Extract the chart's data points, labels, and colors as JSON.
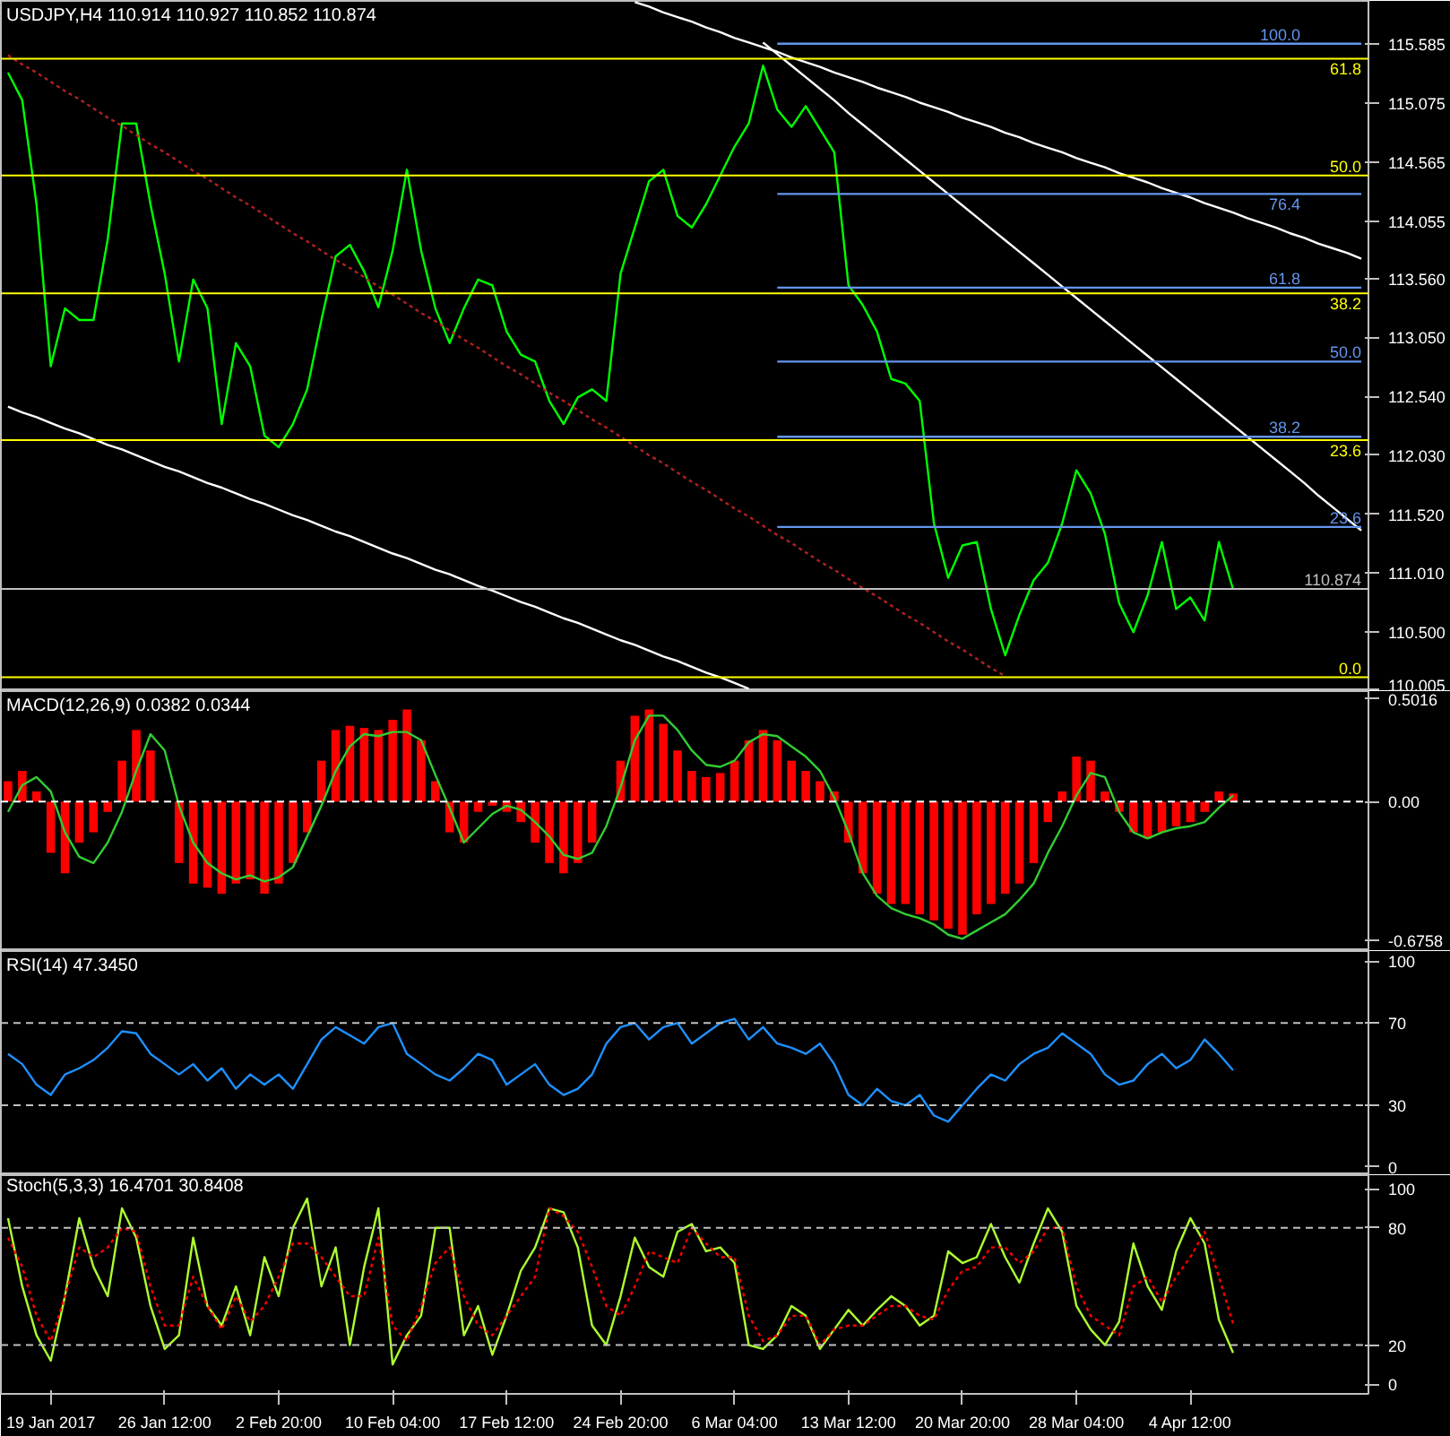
{
  "chart_data": [
    {
      "type": "line",
      "title": "USDJPY,H4 110.914 110.927 110.852 110.874",
      "ylim": [
        109.99,
        115.96
      ],
      "tick_labels": "y",
      "yticks": [
        115.585,
        115.075,
        114.565,
        114.055,
        {
          "value": 113.56,
          "label": "113.560"
        },
        {
          "value": 113.05,
          "label": "113.050"
        },
        {
          "value": 112.54,
          "label": "112.540"
        },
        {
          "value": 112.03,
          "label": "112.030"
        },
        {
          "value": 111.52,
          "label": "111.520"
        },
        {
          "value": 111.01,
          "label": "111.010"
        },
        {
          "value": 110.5,
          "label": "110.500"
        },
        110.005
      ],
      "series": [
        {
          "color": "#00ff00",
          "values": [
            115.34,
            115.1,
            114.2,
            112.8,
            113.3,
            113.2,
            113.2,
            113.9,
            114.9,
            114.9,
            114.2,
            113.6,
            112.84,
            113.55,
            113.3,
            112.3,
            113.0,
            112.8,
            112.2,
            112.1,
            112.3,
            112.6,
            113.2,
            113.75,
            113.85,
            113.62,
            113.31,
            113.8,
            114.5,
            113.8,
            113.3,
            113.0,
            113.3,
            113.55,
            113.5,
            113.1,
            112.9,
            112.84,
            112.5,
            112.3,
            112.53,
            112.6,
            112.5,
            113.6,
            114.0,
            114.4,
            114.5,
            114.1,
            114.0,
            114.2,
            114.45,
            114.7,
            114.9,
            115.4,
            115.02,
            114.87,
            115.05,
            114.85,
            114.65,
            113.5,
            113.33,
            113.1,
            112.69,
            112.65,
            112.5,
            111.44,
            110.97,
            111.25,
            111.28,
            110.7,
            110.3,
            110.65,
            110.95,
            111.1,
            111.44,
            111.9,
            111.7,
            111.35,
            110.75,
            110.5,
            110.82,
            111.28,
            110.7,
            110.8,
            110.6,
            111.28,
            110.87,
            null,
            null,
            null,
            null,
            null,
            null,
            null,
            null,
            null
          ]
        },
        {
          "color": "#ffffff",
          "values": [
            null,
            null,
            null,
            null,
            null,
            null,
            null,
            null,
            null,
            null,
            null,
            null,
            null,
            null,
            null,
            null,
            null,
            null,
            null,
            null,
            null,
            null,
            null,
            null,
            null,
            null,
            null,
            null,
            null,
            null,
            null,
            null,
            null,
            null,
            null,
            null,
            null,
            null,
            null,
            null,
            null,
            null,
            null,
            null,
            115.95,
            115.91,
            115.86,
            115.82,
            115.78,
            115.73,
            115.69,
            115.64,
            115.6,
            115.56,
            115.52,
            115.47,
            115.43,
            115.39,
            115.34,
            115.3,
            115.26,
            115.21,
            115.17,
            115.13,
            115.08,
            115.04,
            115.0,
            114.95,
            114.91,
            114.87,
            114.82,
            114.78,
            114.73,
            114.69,
            114.65,
            114.6,
            114.56,
            114.52,
            114.47,
            114.43,
            114.39,
            114.34,
            114.3,
            114.26,
            114.21,
            114.17,
            114.13,
            114.08,
            114.04,
            114.0,
            113.95,
            113.91,
            113.86,
            113.82,
            113.78,
            113.73
          ]
        },
        {
          "color": "#ffffff",
          "values": [
            null,
            null,
            null,
            null,
            null,
            null,
            null,
            null,
            null,
            null,
            null,
            null,
            null,
            null,
            null,
            null,
            null,
            null,
            null,
            null,
            null,
            null,
            null,
            null,
            null,
            null,
            null,
            null,
            null,
            null,
            null,
            null,
            null,
            null,
            null,
            null,
            null,
            null,
            null,
            null,
            null,
            null,
            null,
            null,
            null,
            null,
            null,
            null,
            null,
            null,
            null,
            null,
            null,
            115.6,
            115.5,
            115.4,
            115.3,
            115.2,
            115.1,
            114.99,
            114.89,
            114.79,
            114.69,
            114.59,
            114.49,
            114.39,
            114.29,
            114.19,
            114.09,
            113.99,
            113.89,
            113.79,
            113.69,
            113.59,
            113.49,
            113.39,
            113.29,
            113.19,
            113.09,
            112.99,
            112.89,
            112.79,
            112.69,
            112.59,
            112.49,
            112.39,
            112.29,
            112.19,
            112.09,
            111.99,
            111.89,
            111.79,
            111.68,
            111.58,
            111.48,
            111.38
          ]
        },
        {
          "color": "#ffffff",
          "values": [
            112.45,
            112.4,
            112.36,
            112.31,
            112.26,
            112.22,
            112.17,
            112.12,
            112.08,
            112.03,
            111.98,
            111.93,
            111.89,
            111.84,
            111.79,
            111.75,
            111.7,
            111.65,
            111.61,
            111.56,
            111.51,
            111.47,
            111.42,
            111.37,
            111.33,
            111.28,
            111.23,
            111.18,
            111.14,
            111.09,
            111.04,
            111.0,
            110.95,
            110.9,
            110.86,
            110.81,
            110.76,
            110.72,
            110.67,
            110.62,
            110.58,
            110.53,
            110.48,
            110.43,
            110.39,
            110.34,
            110.29,
            110.25,
            110.2,
            110.15,
            110.11,
            110.06,
            110.01,
            null,
            null,
            null,
            null,
            null,
            null,
            null,
            null,
            null,
            null,
            null,
            null,
            null,
            null,
            null,
            null,
            null,
            null,
            null,
            null,
            null,
            null,
            null,
            null,
            null,
            null,
            null,
            null,
            null,
            null,
            null,
            null,
            null,
            null,
            null,
            null,
            null,
            null,
            null,
            null,
            null,
            null,
            null
          ]
        },
        {
          "color": "#b22222",
          "line_style": "dotted",
          "values": [
            115.49,
            115.41,
            115.34,
            115.26,
            115.18,
            115.11,
            115.03,
            114.95,
            114.88,
            114.8,
            114.72,
            114.65,
            114.57,
            114.49,
            114.42,
            114.34,
            114.26,
            114.19,
            114.11,
            114.03,
            113.95,
            113.88,
            113.8,
            113.72,
            113.65,
            113.57,
            113.49,
            113.42,
            113.34,
            113.26,
            113.19,
            113.11,
            113.03,
            112.96,
            112.88,
            112.8,
            112.73,
            112.65,
            112.57,
            112.5,
            112.42,
            112.34,
            112.27,
            112.19,
            112.11,
            112.03,
            111.96,
            111.88,
            111.8,
            111.73,
            111.65,
            111.57,
            111.5,
            111.42,
            111.34,
            111.27,
            111.19,
            111.11,
            111.04,
            110.96,
            110.88,
            110.81,
            110.73,
            110.65,
            110.58,
            110.5,
            110.42,
            110.35,
            110.27,
            110.19,
            110.12,
            null,
            null,
            null,
            null,
            null,
            null,
            null,
            null,
            null,
            null,
            null,
            null,
            null,
            null,
            null,
            null,
            null,
            null,
            null,
            null,
            null,
            null,
            null,
            null,
            null
          ]
        },
        {
          "color": "#6495ed",
          "values": [
            null,
            null,
            null,
            null,
            null,
            null,
            null,
            null,
            null,
            null,
            null,
            null,
            null,
            null,
            null,
            null,
            null,
            null,
            null,
            null,
            null,
            null,
            null,
            null,
            null,
            null,
            null,
            null,
            null,
            null,
            null,
            null,
            null,
            null,
            null,
            null,
            null,
            null,
            null,
            null,
            null,
            null,
            null,
            null,
            null,
            null,
            null,
            null,
            null,
            null,
            null,
            null,
            null,
            null,
            115.59,
            115.59,
            115.59,
            115.59,
            115.59,
            115.59,
            115.59,
            115.59,
            115.59,
            115.59,
            115.59,
            115.59,
            115.59,
            115.59,
            115.59,
            115.59,
            115.59,
            115.59,
            115.59,
            115.59,
            115.59,
            115.59,
            115.59,
            115.59,
            115.59,
            115.59,
            115.59,
            115.59,
            115.59,
            115.59,
            115.59,
            115.59,
            115.59,
            115.59,
            115.59,
            115.59,
            115.59,
            115.59,
            115.59,
            115.59,
            115.59,
            115.59
          ]
        },
        {
          "color": "#6495ed",
          "values": [
            null,
            null,
            null,
            null,
            null,
            null,
            null,
            null,
            null,
            null,
            null,
            null,
            null,
            null,
            null,
            null,
            null,
            null,
            null,
            null,
            null,
            null,
            null,
            null,
            null,
            null,
            null,
            null,
            null,
            null,
            null,
            null,
            null,
            null,
            null,
            null,
            null,
            null,
            null,
            null,
            null,
            null,
            null,
            null,
            null,
            null,
            null,
            null,
            null,
            null,
            null,
            null,
            null,
            null,
            114.29,
            114.29,
            114.29,
            114.29,
            114.29,
            114.29,
            114.29,
            114.29,
            114.29,
            114.29,
            114.29,
            114.29,
            114.29,
            114.29,
            114.29,
            114.29,
            114.29,
            114.29,
            114.29,
            114.29,
            114.29,
            114.29,
            114.29,
            114.29,
            114.29,
            114.29,
            114.29,
            114.29,
            114.29,
            114.29,
            114.29,
            114.29,
            114.29,
            114.29,
            114.29,
            114.29,
            114.29,
            114.29,
            114.29,
            114.29,
            114.29,
            114.29
          ]
        },
        {
          "color": "#6495ed",
          "values": [
            null,
            null,
            null,
            null,
            null,
            null,
            null,
            null,
            null,
            null,
            null,
            null,
            null,
            null,
            null,
            null,
            null,
            null,
            null,
            null,
            null,
            null,
            null,
            null,
            null,
            null,
            null,
            null,
            null,
            null,
            null,
            null,
            null,
            null,
            null,
            null,
            null,
            null,
            null,
            null,
            null,
            null,
            null,
            null,
            null,
            null,
            null,
            null,
            null,
            null,
            null,
            null,
            null,
            null,
            113.48,
            113.48,
            113.48,
            113.48,
            113.48,
            113.48,
            113.48,
            113.48,
            113.48,
            113.48,
            113.48,
            113.48,
            113.48,
            113.48,
            113.48,
            113.48,
            113.48,
            113.48,
            113.48,
            113.48,
            113.48,
            113.48,
            113.48,
            113.48,
            113.48,
            113.48,
            113.48,
            113.48,
            113.48,
            113.48,
            113.48,
            113.48,
            113.48,
            113.48,
            113.48,
            113.48,
            113.48,
            113.48,
            113.48,
            113.48,
            113.48,
            113.48
          ]
        },
        {
          "color": "#6495ed",
          "values": [
            null,
            null,
            null,
            null,
            null,
            null,
            null,
            null,
            null,
            null,
            null,
            null,
            null,
            null,
            null,
            null,
            null,
            null,
            null,
            null,
            null,
            null,
            null,
            null,
            null,
            null,
            null,
            null,
            null,
            null,
            null,
            null,
            null,
            null,
            null,
            null,
            null,
            null,
            null,
            null,
            null,
            null,
            null,
            null,
            null,
            null,
            null,
            null,
            null,
            null,
            null,
            null,
            null,
            null,
            112.84,
            112.84,
            112.84,
            112.84,
            112.84,
            112.84,
            112.84,
            112.84,
            112.84,
            112.84,
            112.84,
            112.84,
            112.84,
            112.84,
            112.84,
            112.84,
            112.84,
            112.84,
            112.84,
            112.84,
            112.84,
            112.84,
            112.84,
            112.84,
            112.84,
            112.84,
            112.84,
            112.84,
            112.84,
            112.84,
            112.84,
            112.84,
            112.84,
            112.84,
            112.84,
            112.84,
            112.84,
            112.84,
            112.84,
            112.84,
            112.84,
            112.84
          ]
        },
        {
          "color": "#6495ed",
          "values": [
            null,
            null,
            null,
            null,
            null,
            null,
            null,
            null,
            null,
            null,
            null,
            null,
            null,
            null,
            null,
            null,
            null,
            null,
            null,
            null,
            null,
            null,
            null,
            null,
            null,
            null,
            null,
            null,
            null,
            null,
            null,
            null,
            null,
            null,
            null,
            null,
            null,
            null,
            null,
            null,
            null,
            null,
            null,
            null,
            null,
            null,
            null,
            null,
            null,
            null,
            null,
            null,
            null,
            null,
            112.19,
            112.19,
            112.19,
            112.19,
            112.19,
            112.19,
            112.19,
            112.19,
            112.19,
            112.19,
            112.19,
            112.19,
            112.19,
            112.19,
            112.19,
            112.19,
            112.19,
            112.19,
            112.19,
            112.19,
            112.19,
            112.19,
            112.19,
            112.19,
            112.19,
            112.19,
            112.19,
            112.19,
            112.19,
            112.19,
            112.19,
            112.19,
            112.19,
            112.19,
            112.19,
            112.19,
            112.19,
            112.19,
            112.19,
            112.19,
            112.19,
            112.19
          ]
        },
        {
          "color": "#6495ed",
          "values": [
            null,
            null,
            null,
            null,
            null,
            null,
            null,
            null,
            null,
            null,
            null,
            null,
            null,
            null,
            null,
            null,
            null,
            null,
            null,
            null,
            null,
            null,
            null,
            null,
            null,
            null,
            null,
            null,
            null,
            null,
            null,
            null,
            null,
            null,
            null,
            null,
            null,
            null,
            null,
            null,
            null,
            null,
            null,
            null,
            null,
            null,
            null,
            null,
            null,
            null,
            null,
            null,
            null,
            null,
            111.41,
            111.41,
            111.41,
            111.41,
            111.41,
            111.41,
            111.41,
            111.41,
            111.41,
            111.41,
            111.41,
            111.41,
            111.41,
            111.41,
            111.41,
            111.41,
            111.41,
            111.41,
            111.41,
            111.41,
            111.41,
            111.41,
            111.41,
            111.41,
            111.41,
            111.41,
            111.41,
            111.41,
            111.41,
            111.41,
            111.41,
            111.41,
            111.41,
            111.41,
            111.41,
            111.41,
            111.41,
            111.41,
            111.41,
            111.41,
            111.41,
            111.41
          ]
        }
      ],
      "ref_lines": [
        {
          "axis": "y",
          "value": 115.46,
          "color": "#ffff00"
        },
        {
          "axis": "y",
          "value": 114.45,
          "color": "#ffff00"
        },
        {
          "axis": "y",
          "value": 113.43,
          "color": "#ffff00"
        },
        {
          "axis": "y",
          "value": 112.16,
          "color": "#ffff00"
        },
        {
          "axis": "y",
          "value": 110.11,
          "color": "#ffff00"
        },
        {
          "axis": "y",
          "value": 110.874,
          "label": "110.874",
          "color": "#c0c0c0"
        }
      ],
      "annotations": [
        {
          "text": "61.8",
          "y": 115.46
        },
        {
          "text": "50.0",
          "y": 114.45
        },
        {
          "text": "38.2",
          "y": 113.43
        },
        {
          "text": "23.6",
          "y": 112.16
        },
        {
          "text": "0.0",
          "y": 110.11
        },
        {
          "text": "100.0",
          "y": 115.59
        },
        {
          "text": "76.4",
          "y": 114.29
        },
        {
          "text": "61.8",
          "y": 113.48
        },
        {
          "text": "50.0",
          "y": 112.84
        },
        {
          "text": "38.2",
          "y": 112.19
        },
        {
          "text": "23.6",
          "y": 111.41
        }
      ]
    },
    {
      "type": "bar",
      "title": "MACD(12,26,9) 0.0382 0.0344",
      "ylim": [
        -0.73,
        0.54
      ],
      "tick_labels": "y",
      "yticks": [
        {
          "value": 0.5016,
          "label": "0.5016"
        },
        {
          "value": 0,
          "label": "0.00"
        },
        {
          "value": -0.6758,
          "label": "-0.6758"
        }
      ],
      "series": [
        {
          "color": "#ff0000",
          "values": [
            0.1,
            0.15,
            0.05,
            -0.25,
            -0.35,
            -0.2,
            -0.15,
            -0.05,
            0.2,
            0.35,
            0.25,
            0.0,
            -0.3,
            -0.4,
            -0.42,
            -0.45,
            -0.4,
            -0.38,
            -0.45,
            -0.4,
            -0.3,
            -0.15,
            0.2,
            0.35,
            0.37,
            0.36,
            0.35,
            0.4,
            0.45,
            0.3,
            0.1,
            -0.15,
            -0.2,
            -0.05,
            -0.02,
            -0.05,
            -0.1,
            -0.2,
            -0.3,
            -0.35,
            -0.3,
            -0.2,
            0.0,
            0.2,
            0.42,
            0.45,
            0.38,
            0.25,
            0.15,
            0.12,
            0.14,
            0.2,
            0.3,
            0.35,
            0.3,
            0.2,
            0.15,
            0.1,
            0.05,
            -0.2,
            -0.35,
            -0.45,
            -0.5,
            -0.5,
            -0.55,
            -0.58,
            -0.62,
            -0.65,
            -0.55,
            -0.5,
            -0.45,
            -0.4,
            -0.3,
            -0.1,
            0.05,
            0.22,
            0.2,
            0.05,
            -0.05,
            -0.15,
            -0.18,
            -0.15,
            -0.12,
            -0.1,
            -0.05,
            0.05,
            0.04,
            null,
            null,
            null,
            null,
            null,
            null,
            null,
            null,
            null
          ]
        },
        {
          "type": "line",
          "color": "#32cd32",
          "values": [
            -0.05,
            0.08,
            0.12,
            0.05,
            -0.15,
            -0.27,
            -0.3,
            -0.2,
            -0.05,
            0.15,
            0.33,
            0.25,
            -0.02,
            -0.2,
            -0.3,
            -0.35,
            -0.38,
            -0.36,
            -0.39,
            -0.37,
            -0.32,
            -0.17,
            -0.02,
            0.15,
            0.27,
            0.33,
            0.32,
            0.34,
            0.34,
            0.3,
            0.13,
            -0.03,
            -0.2,
            -0.13,
            -0.06,
            -0.02,
            -0.04,
            -0.1,
            -0.17,
            -0.26,
            -0.28,
            -0.25,
            -0.12,
            0.07,
            0.3,
            0.42,
            0.42,
            0.35,
            0.25,
            0.18,
            0.17,
            0.2,
            0.29,
            0.33,
            0.32,
            0.27,
            0.22,
            0.15,
            0.02,
            -0.15,
            -0.35,
            -0.46,
            -0.52,
            -0.55,
            -0.57,
            -0.6,
            -0.65,
            -0.67,
            -0.63,
            -0.59,
            -0.55,
            -0.48,
            -0.4,
            -0.25,
            -0.12,
            0.03,
            0.14,
            0.12,
            -0.05,
            -0.15,
            -0.18,
            -0.15,
            -0.13,
            -0.12,
            -0.1,
            -0.03,
            0.03,
            null,
            null,
            null,
            null,
            null,
            null,
            null,
            null,
            null
          ]
        }
      ],
      "ref_lines": [
        {
          "axis": "y",
          "value": 0,
          "color": "#ffffff",
          "line_style": "dashed"
        }
      ]
    },
    {
      "type": "line",
      "title": "RSI(14) 47.3450",
      "ylim": [
        -4,
        105
      ],
      "tick_labels": "y",
      "yticks": [
        100,
        70,
        30,
        0
      ],
      "series": [
        {
          "color": "#1e90ff",
          "values": [
            55,
            50,
            40,
            35,
            45,
            48,
            52,
            58,
            66,
            65,
            55,
            50,
            45,
            50,
            42,
            48,
            38,
            45,
            40,
            45,
            38,
            50,
            62,
            68,
            64,
            60,
            68,
            70,
            55,
            50,
            45,
            42,
            48,
            55,
            52,
            40,
            45,
            50,
            40,
            35,
            38,
            45,
            60,
            68,
            70,
            62,
            68,
            70,
            60,
            65,
            70,
            72,
            62,
            68,
            60,
            58,
            55,
            60,
            50,
            35,
            30,
            38,
            32,
            30,
            35,
            25,
            22,
            30,
            38,
            45,
            42,
            50,
            55,
            58,
            65,
            60,
            55,
            45,
            40,
            42,
            50,
            55,
            48,
            52,
            62,
            55,
            47,
            null,
            null,
            null,
            null,
            null,
            null,
            null,
            null,
            null
          ]
        }
      ],
      "ref_lines": [
        {
          "axis": "y",
          "value": 70,
          "color": "#c0c0c0",
          "line_style": "dashed"
        },
        {
          "axis": "y",
          "value": 30,
          "color": "#c0c0c0",
          "line_style": "dashed"
        }
      ]
    },
    {
      "type": "line",
      "title": "Stoch(5,3,3) 16.4701 30.8408",
      "ylim": [
        -5,
        107
      ],
      "yticks": [
        100,
        80,
        20,
        0
      ],
      "categories": [
        null,
        null,
        null,
        "19 Jan 2017",
        null,
        null,
        null,
        null,
        null,
        null,
        null,
        "26 Jan 12:00",
        null,
        null,
        null,
        null,
        null,
        null,
        null,
        "2 Feb 20:00",
        null,
        null,
        null,
        null,
        null,
        null,
        null,
        "10 Feb 04:00",
        null,
        null,
        null,
        null,
        null,
        null,
        null,
        "17 Feb 12:00",
        null,
        null,
        null,
        null,
        null,
        null,
        null,
        "24 Feb 20:00",
        null,
        null,
        null,
        null,
        null,
        null,
        null,
        "6 Mar 04:00",
        null,
        null,
        null,
        null,
        null,
        null,
        null,
        "13 Mar 12:00",
        null,
        null,
        null,
        null,
        null,
        null,
        null,
        "20 Mar 20:00",
        null,
        null,
        null,
        null,
        null,
        null,
        null,
        "28 Mar 04:00",
        null,
        null,
        null,
        null,
        null,
        null,
        null,
        "4 Apr 12:00",
        null,
        null,
        null,
        null,
        null,
        null,
        null,
        null,
        null,
        null,
        null,
        null
      ],
      "series": [
        {
          "color": "#adff2f",
          "values": [
            85,
            50,
            25,
            12,
            45,
            85,
            60,
            45,
            90,
            75,
            40,
            18,
            25,
            75,
            40,
            30,
            50,
            25,
            65,
            45,
            80,
            95,
            50,
            70,
            20,
            60,
            90,
            10,
            25,
            35,
            80,
            80,
            25,
            40,
            15,
            35,
            58,
            70,
            90,
            88,
            70,
            30,
            20,
            45,
            75,
            60,
            55,
            78,
            82,
            68,
            70,
            62,
            20,
            18,
            25,
            40,
            35,
            18,
            28,
            38,
            30,
            38,
            45,
            40,
            30,
            35,
            68,
            62,
            65,
            82,
            65,
            52,
            72,
            90,
            78,
            40,
            28,
            20,
            32,
            72,
            50,
            38,
            68,
            85,
            72,
            33,
            16,
            null,
            null,
            null,
            null,
            null,
            null,
            null,
            null,
            null
          ]
        },
        {
          "color": "#ff0000",
          "line_style": "dotted",
          "values": [
            75,
            60,
            35,
            22,
            45,
            70,
            65,
            70,
            80,
            78,
            50,
            30,
            30,
            55,
            40,
            28,
            45,
            32,
            40,
            55,
            72,
            72,
            65,
            55,
            45,
            45,
            75,
            30,
            22,
            40,
            62,
            70,
            45,
            30,
            25,
            35,
            45,
            55,
            90,
            86,
            78,
            60,
            40,
            35,
            50,
            68,
            65,
            62,
            80,
            72,
            65,
            65,
            35,
            22,
            25,
            35,
            35,
            20,
            28,
            30,
            30,
            35,
            40,
            40,
            35,
            33,
            48,
            58,
            60,
            70,
            70,
            62,
            68,
            80,
            80,
            50,
            35,
            30,
            25,
            50,
            55,
            42,
            55,
            65,
            78,
            55,
            31,
            null,
            null,
            null,
            null,
            null,
            null,
            null,
            null,
            null
          ]
        }
      ],
      "ref_lines": [
        {
          "axis": "y",
          "value": 80,
          "color": "#c0c0c0",
          "line_style": "dashed"
        },
        {
          "axis": "y",
          "value": 20,
          "color": "#c0c0c0",
          "line_style": "dashed"
        }
      ]
    }
  ]
}
